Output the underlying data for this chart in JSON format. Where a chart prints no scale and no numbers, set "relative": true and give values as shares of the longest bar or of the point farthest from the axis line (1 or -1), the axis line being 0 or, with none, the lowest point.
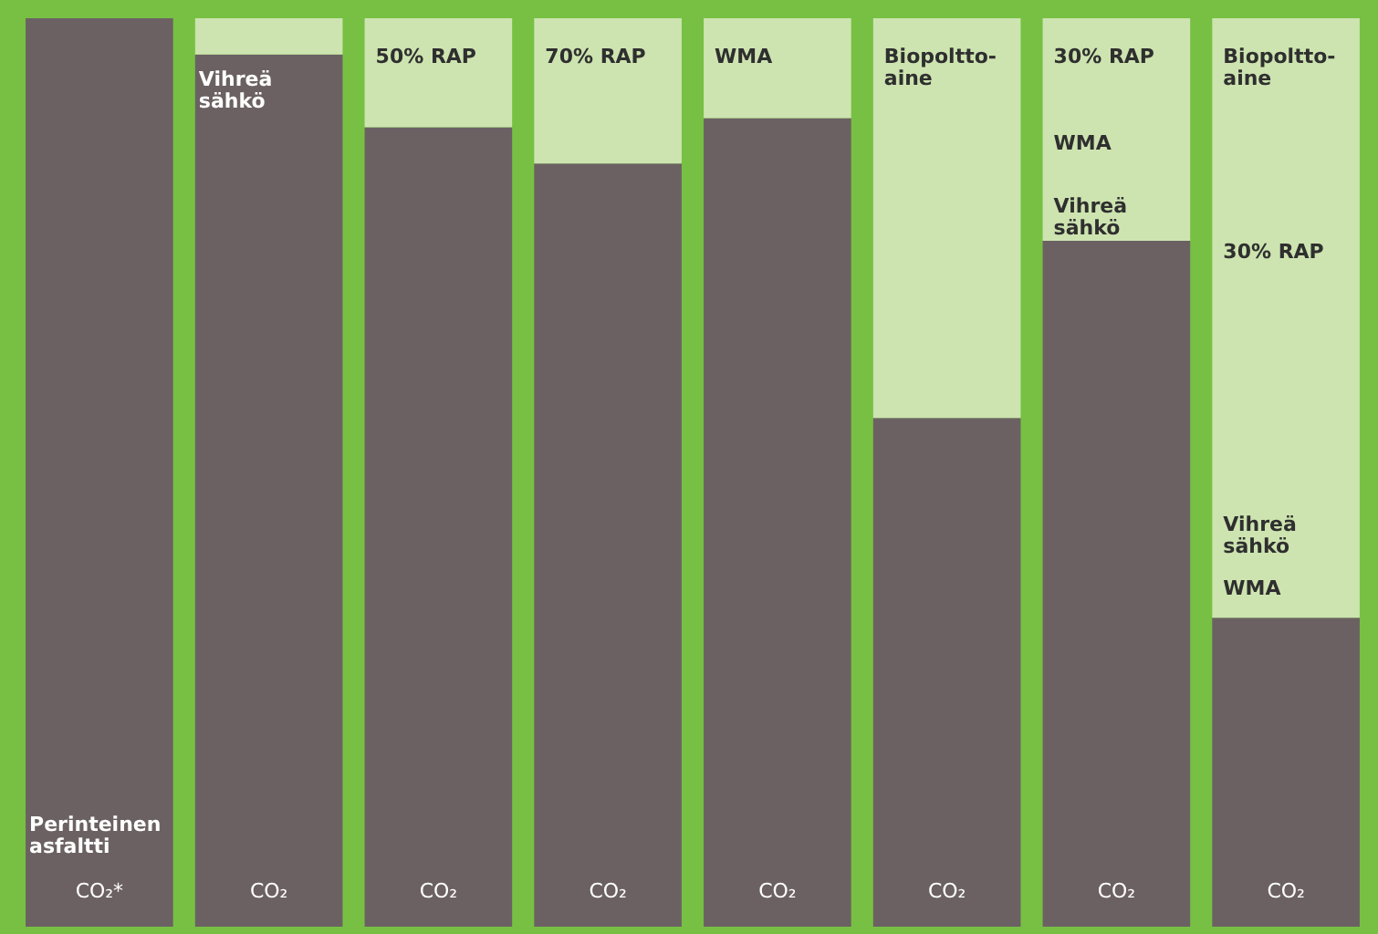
{
  "chart_data": {
    "type": "bar",
    "relative": true,
    "stacked": true,
    "categories": [
      "CO₂*",
      "CO₂",
      "CO₂",
      "CO₂",
      "CO₂",
      "CO₂",
      "CO₂",
      "CO₂"
    ],
    "series": [
      {
        "color": "#6b6163",
        "values": [
          1,
          0.96,
          0.88,
          0.84,
          0.89,
          0.56,
          0.755,
          0.34
        ]
      },
      {
        "color": "#cde4b0",
        "values": [
          0,
          0.04,
          0.12,
          0.16,
          0.11,
          0.44,
          0.245,
          0.66
        ]
      }
    ],
    "annotations": [
      "Perinteinen\nasfaltti",
      "Vihreä\nsähkö",
      "50% RAP",
      "70% RAP",
      "WMA",
      "Biopoltto-\naine",
      "30% RAP",
      "WMA",
      "Vihreä\nsähkö",
      "Biopoltto-\naine",
      "30% RAP",
      "Vihreä\nsähkö",
      "WMA"
    ]
  }
}
